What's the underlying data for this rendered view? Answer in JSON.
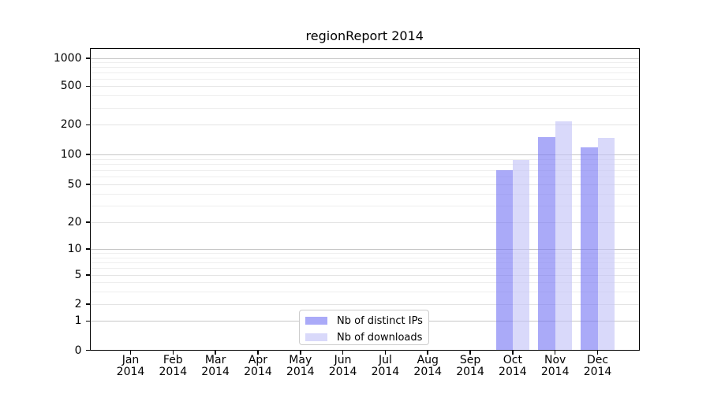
{
  "page": {
    "background": "#ffffff"
  },
  "chart_data": {
    "type": "bar",
    "title": "regionReport 2014",
    "categories": [
      "Jan",
      "Feb",
      "Mar",
      "Apr",
      "May",
      "Jun",
      "Jul",
      "Aug",
      "Sep",
      "Oct",
      "Nov",
      "Dec"
    ],
    "category_year": "2014",
    "series": [
      {
        "name": "Nb of distinct IPs",
        "color": "#aaaaf8",
        "values": [
          0,
          0,
          0,
          0,
          0,
          0,
          0,
          0,
          0,
          70,
          150,
          119
        ]
      },
      {
        "name": "Nb of downloads",
        "color": "#d9d9fa",
        "values": [
          0,
          0,
          0,
          0,
          0,
          0,
          0,
          0,
          0,
          88,
          215,
          146
        ]
      }
    ],
    "yticks": [
      0,
      1,
      2,
      5,
      10,
      20,
      50,
      100,
      200,
      500,
      1000
    ],
    "minor_yticks": [
      3,
      4,
      6,
      7,
      8,
      9,
      30,
      40,
      60,
      70,
      80,
      90,
      300,
      400,
      600,
      700,
      800,
      900
    ],
    "xlabel": "",
    "ylabel": "",
    "yscale": "symlog (log above 1, linear 0-1)",
    "ylim": [
      0,
      1300
    ],
    "grid": true,
    "legend_position": "lower center inside axes",
    "colors": {
      "grid_major": "#c6c6c6",
      "grid_mid": "#e4e4e4",
      "grid_minor": "#eeeeee",
      "spine": "#000000",
      "legend_border": "#cccccc",
      "text": "#000000",
      "background": "#ffffff"
    }
  }
}
